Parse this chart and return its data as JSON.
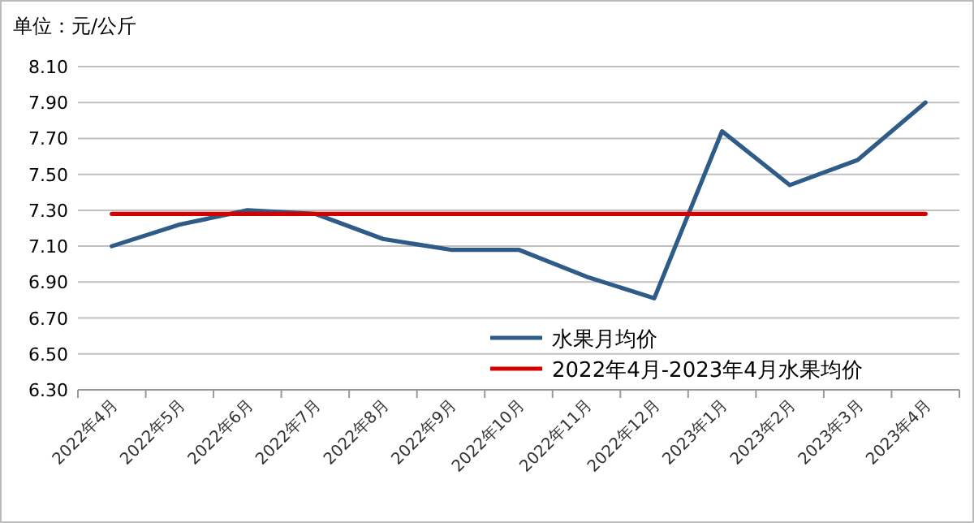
{
  "chart_data": {
    "type": "line",
    "ylabel": "单位：元/公斤",
    "categories": [
      "2022年4月",
      "2022年5月",
      "2022年6月",
      "2022年7月",
      "2022年8月",
      "2022年9月",
      "2022年10月",
      "2022年11月",
      "2022年12月",
      "2023年1月",
      "2023年2月",
      "2023年3月",
      "2023年4月"
    ],
    "series": [
      {
        "name": "水果月均价",
        "color": "#2e5b87",
        "values": [
          7.1,
          7.22,
          7.3,
          7.28,
          7.14,
          7.08,
          7.08,
          6.93,
          6.81,
          7.74,
          7.44,
          7.58,
          7.9
        ]
      },
      {
        "name": "2022年4月-2023年4月水果均价",
        "color": "#d40000",
        "values": [
          7.28,
          7.28,
          7.28,
          7.28,
          7.28,
          7.28,
          7.28,
          7.28,
          7.28,
          7.28,
          7.28,
          7.28,
          7.28
        ]
      }
    ],
    "ylim": [
      6.3,
      8.1
    ],
    "yticks": [
      {
        "value": 6.3,
        "label": "6.30"
      },
      {
        "value": 6.5,
        "label": "6.50"
      },
      {
        "value": 6.7,
        "label": "6.70"
      },
      {
        "value": 6.9,
        "label": "6.90"
      },
      {
        "value": 7.1,
        "label": "7.10"
      },
      {
        "value": 7.3,
        "label": "7.30"
      },
      {
        "value": 7.5,
        "label": "7.50"
      },
      {
        "value": 7.7,
        "label": "7.70"
      },
      {
        "value": 7.9,
        "label": "7.90"
      },
      {
        "value": 8.1,
        "label": "8.10"
      }
    ],
    "grid": "y",
    "legend": "bottom right",
    "marker": "none",
    "line_style": "solid"
  }
}
